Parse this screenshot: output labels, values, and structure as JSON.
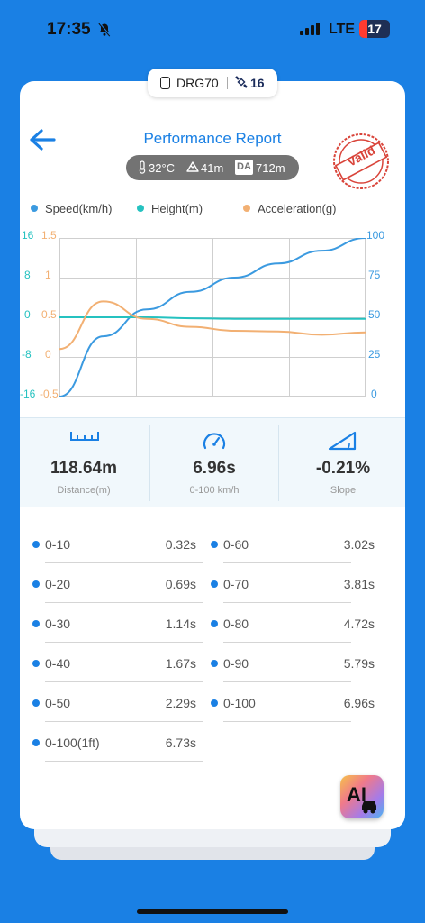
{
  "status_bar": {
    "time": "17:35",
    "network": "LTE",
    "battery": "17"
  },
  "device": {
    "name": "DRG70",
    "satellites": "16"
  },
  "header": {
    "title": "Performance Report",
    "stamp": "Valid"
  },
  "environment": {
    "temperature": "32°C",
    "altitude": "41m",
    "da_label": "DA",
    "density_altitude": "712m"
  },
  "legend": [
    {
      "label": "Speed(km/h)",
      "color": "#3b9ae0"
    },
    {
      "label": "Height(m)",
      "color": "#25c2c0"
    },
    {
      "label": "Acceleration(g)",
      "color": "#f2b073"
    }
  ],
  "chart_data": {
    "type": "line",
    "left_axis_height": {
      "ticks": [
        "16",
        "8",
        "0",
        "-8",
        "-16"
      ],
      "color": "#25c2c0"
    },
    "left_axis_accel": {
      "ticks": [
        "1.5",
        "1",
        "0.5",
        "0",
        "-0.5"
      ],
      "color": "#f2b073"
    },
    "right_axis_speed": {
      "ticks": [
        "100",
        "75",
        "50",
        "25",
        "0"
      ],
      "color": "#3b9ae0"
    },
    "x": [
      0,
      1,
      2,
      3,
      4,
      5,
      6,
      7
    ],
    "series": [
      {
        "name": "Speed(km/h)",
        "color": "#3b9ae0",
        "values": [
          0,
          38,
          55,
          66,
          75,
          84,
          92,
          100
        ],
        "range": [
          0,
          100
        ]
      },
      {
        "name": "Height(m)",
        "color": "#25c2c0",
        "values": [
          0,
          0,
          0,
          -0.2,
          -0.3,
          -0.3,
          -0.3,
          -0.3
        ],
        "range": [
          -16,
          16
        ]
      },
      {
        "name": "Acceleration(g)",
        "color": "#f2b073",
        "values": [
          0.1,
          0.7,
          0.48,
          0.38,
          0.33,
          0.32,
          0.28,
          0.31
        ],
        "range": [
          -0.5,
          1.5
        ]
      }
    ],
    "grid": true
  },
  "stats": [
    {
      "value": "118.64m",
      "label": "Distance(m)",
      "icon": "ruler-icon"
    },
    {
      "value": "6.96s",
      "label": "0-100 km/h",
      "icon": "speedometer-icon"
    },
    {
      "value": "-0.21%",
      "label": "Slope",
      "icon": "slope-icon"
    }
  ],
  "results": [
    {
      "label": "0-10",
      "value": "0.32s"
    },
    {
      "label": "0-60",
      "value": "3.02s"
    },
    {
      "label": "0-20",
      "value": "0.69s"
    },
    {
      "label": "0-70",
      "value": "3.81s"
    },
    {
      "label": "0-30",
      "value": "1.14s"
    },
    {
      "label": "0-80",
      "value": "4.72s"
    },
    {
      "label": "0-40",
      "value": "1.67s"
    },
    {
      "label": "0-90",
      "value": "5.79s"
    },
    {
      "label": "0-50",
      "value": "2.29s"
    },
    {
      "label": "0-100",
      "value": "6.96s"
    },
    {
      "label": "0-100(1ft)",
      "value": "6.73s"
    }
  ],
  "ai_button": {
    "label": "AI"
  }
}
